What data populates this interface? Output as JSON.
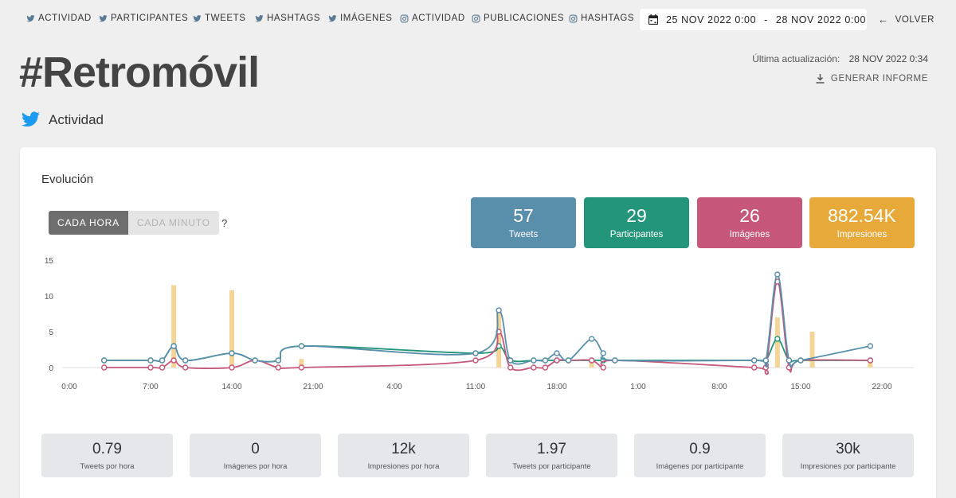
{
  "nav": {
    "items": [
      {
        "label": "ACTIVIDAD",
        "icon": "twitter-icon"
      },
      {
        "label": "PARTICIPANTES",
        "icon": "twitter-icon"
      },
      {
        "label": "TWEETS",
        "icon": "twitter-icon"
      },
      {
        "label": "HASHTAGS",
        "icon": "twitter-icon"
      },
      {
        "label": "IMÁGENES",
        "icon": "twitter-icon"
      },
      {
        "label": "ACTIVIDAD",
        "icon": "instagram-icon"
      },
      {
        "label": "PUBLICACIONES",
        "icon": "instagram-icon"
      },
      {
        "label": "HASHTAGS",
        "icon": "instagram-icon"
      }
    ],
    "date_from": "25 NOV 2022 0:00",
    "date_sep": "-",
    "date_to": "28 NOV 2022 0:00",
    "back_label": "VOLVER"
  },
  "header": {
    "title": "#Retromóvil",
    "updated_label": "Última actualización:",
    "updated_value": "28 NOV 2022 0:34",
    "report_label": "GENERAR INFORME",
    "section": "Actividad"
  },
  "card": {
    "title": "Evolución",
    "toggle_hour": "CADA HORA",
    "toggle_minute": "CADA MINUTO",
    "help": "?",
    "stats": [
      {
        "value": "57",
        "label": "Tweets",
        "color": "#5a8fab"
      },
      {
        "value": "29",
        "label": "Participantes",
        "color": "#23957a"
      },
      {
        "value": "26",
        "label": "Imágenes",
        "color": "#c6577a"
      },
      {
        "value": "882.54K",
        "label": "Impresiones",
        "color": "#e6a93a"
      }
    ],
    "minis": [
      {
        "value": "0.79",
        "label": "Tweets por hora"
      },
      {
        "value": "0",
        "label": "Imágenes por hora"
      },
      {
        "value": "12k",
        "label": "Impresiones por hora"
      },
      {
        "value": "1.97",
        "label": "Tweets por participante"
      },
      {
        "value": "0.9",
        "label": "Imágenes por participante"
      },
      {
        "value": "30k",
        "label": "Impresiones por participante"
      }
    ]
  },
  "chart_data": {
    "type": "line",
    "title": "Evolución",
    "ylim": [
      0,
      15
    ],
    "yticks": [
      0,
      5,
      10,
      15
    ],
    "xlim": [
      0,
      70
    ],
    "xticks": [
      {
        "x": 0,
        "label": "0:00"
      },
      {
        "x": 7,
        "label": "7:00"
      },
      {
        "x": 14,
        "label": "14:00"
      },
      {
        "x": 21,
        "label": "21:00"
      },
      {
        "x": 28,
        "label": "4:00"
      },
      {
        "x": 35,
        "label": "11:00"
      },
      {
        "x": 42,
        "label": "18:00"
      },
      {
        "x": 49,
        "label": "1:00"
      },
      {
        "x": 56,
        "label": "8:00"
      },
      {
        "x": 63,
        "label": "15:00"
      },
      {
        "x": 70,
        "label": "22:00"
      }
    ],
    "series": [
      {
        "name": "Participantes",
        "color": "#23957a",
        "points": [
          [
            3,
            1
          ],
          [
            7,
            1
          ],
          [
            8,
            1
          ],
          [
            9,
            3
          ],
          [
            10,
            1
          ],
          [
            14,
            2
          ],
          [
            16,
            1
          ],
          [
            18,
            1
          ],
          [
            20,
            3
          ],
          [
            35,
            2
          ],
          [
            37,
            3
          ],
          [
            38,
            1
          ],
          [
            40,
            1
          ],
          [
            41,
            1
          ],
          [
            42,
            1
          ],
          [
            43,
            1
          ],
          [
            45,
            1
          ],
          [
            46,
            1
          ],
          [
            47,
            1
          ],
          [
            59,
            1
          ],
          [
            60,
            1
          ],
          [
            61,
            4
          ],
          [
            62,
            1
          ],
          [
            63,
            1
          ],
          [
            69,
            1
          ]
        ]
      },
      {
        "name": "Imágenes",
        "color": "#c6577a",
        "points": [
          [
            3,
            0
          ],
          [
            7,
            0
          ],
          [
            8,
            0
          ],
          [
            9,
            1
          ],
          [
            10,
            0
          ],
          [
            14,
            0
          ],
          [
            16,
            1
          ],
          [
            18,
            0
          ],
          [
            20,
            0
          ],
          [
            35,
            1
          ],
          [
            37,
            5
          ],
          [
            38,
            0
          ],
          [
            40,
            0
          ],
          [
            41,
            0
          ],
          [
            42,
            1
          ],
          [
            43,
            1
          ],
          [
            45,
            1
          ],
          [
            46,
            0
          ],
          [
            47,
            1
          ],
          [
            59,
            0
          ],
          [
            60,
            0
          ],
          [
            61,
            12
          ],
          [
            62,
            0
          ],
          [
            63,
            1
          ],
          [
            69,
            1
          ]
        ]
      },
      {
        "name": "Tweets",
        "color": "#5a8fab",
        "points": [
          [
            3,
            1
          ],
          [
            7,
            1
          ],
          [
            8,
            1
          ],
          [
            9,
            3
          ],
          [
            10,
            1
          ],
          [
            14,
            2
          ],
          [
            16,
            1
          ],
          [
            18,
            1
          ],
          [
            20,
            3
          ],
          [
            35,
            2
          ],
          [
            37,
            8
          ],
          [
            38,
            1
          ],
          [
            40,
            1
          ],
          [
            41,
            1
          ],
          [
            42,
            2
          ],
          [
            43,
            1
          ],
          [
            45,
            4
          ],
          [
            46,
            2
          ],
          [
            47,
            1
          ],
          [
            59,
            1
          ],
          [
            60,
            1
          ],
          [
            61,
            13
          ],
          [
            62,
            1
          ],
          [
            63,
            1
          ],
          [
            69,
            3
          ]
        ]
      }
    ],
    "bars": {
      "name": "Impresiones",
      "color": "#f5d597",
      "points": [
        [
          9,
          11.5
        ],
        [
          14,
          10.8
        ],
        [
          20,
          1.2
        ],
        [
          37,
          7.8
        ],
        [
          45,
          1
        ],
        [
          61,
          7
        ],
        [
          64,
          5
        ],
        [
          69,
          1
        ]
      ]
    }
  }
}
